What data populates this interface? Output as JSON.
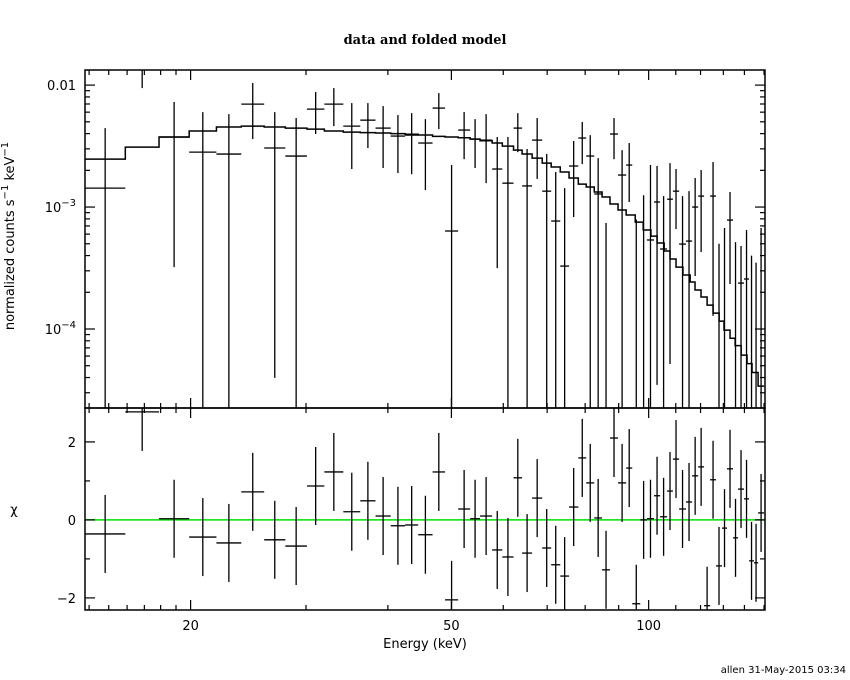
{
  "chart_data": [
    {
      "type": "scatter",
      "panel": "top",
      "title": "data and folded model",
      "ylabel": "normalized counts s^-1 keV^-1",
      "ylabel_parts": {
        "base": "normalized counts s",
        "exp1": "−1",
        "mid": " keV",
        "exp2": "−1"
      },
      "xscale": "log",
      "yscale": "log",
      "xlim": [
        13.8,
        150.5
      ],
      "ylim": [
        2.25e-05,
        0.0133
      ],
      "ytick_labels": [
        {
          "value": 0.01,
          "text": "0.01"
        },
        {
          "value": 0.001,
          "base": "10",
          "exp": "−3"
        },
        {
          "value": 0.0001,
          "base": "10",
          "exp": "−4"
        }
      ],
      "data_columns": [
        "e_lo_keV",
        "e_hi_keV",
        "counts",
        "err_lo",
        "err_hi"
      ],
      "data": [
        [
          13.8,
          15.9,
          0.00143,
          0,
          0.00444
        ],
        [
          15.9,
          17.9,
          0.0135,
          0.00945,
          0.018
        ],
        [
          17.9,
          19.9,
          0.00375,
          0.000322,
          0.00726
        ],
        [
          19.9,
          21.9,
          0.00282,
          0,
          0.00601
        ],
        [
          21.9,
          23.9,
          0.00272,
          0,
          0.00578
        ],
        [
          23.9,
          25.9,
          0.00698,
          0.00361,
          0.0104
        ],
        [
          25.9,
          27.9,
          0.00305,
          3.97e-05,
          0.00601
        ],
        [
          27.9,
          30.1,
          0.00262,
          0,
          0.00537
        ],
        [
          30.1,
          32.0,
          0.00635,
          0.00397,
          0.00877
        ],
        [
          32.0,
          34.2,
          0.00698,
          0.00461,
          0.00945
        ],
        [
          34.2,
          36.3,
          0.00461,
          0.00205,
          0.00712
        ],
        [
          36.3,
          38.3,
          0.00516,
          0.00305,
          0.00712
        ],
        [
          38.3,
          40.4,
          0.00444,
          0.00209,
          0.00673
        ],
        [
          40.4,
          42.5,
          0.00382,
          0.0019,
          0.00568
        ],
        [
          42.5,
          44.5,
          0.00389,
          0.00186,
          0.00589
        ],
        [
          44.5,
          46.8,
          0.00335,
          0.00138,
          0.00526
        ],
        [
          46.8,
          48.9,
          0.00648,
          0.00436,
          0.0086
        ],
        [
          48.9,
          51.2,
          0.000636,
          0,
          0.00221
        ],
        [
          51.2,
          53.4,
          0.00428,
          0.00247,
          0.00601
        ],
        [
          53.4,
          55.3,
          0.00361,
          0.00209,
          0.00526
        ],
        [
          55.3,
          57.7,
          0.00354,
          0.00157,
          0.00578
        ],
        [
          57.7,
          59.8,
          0.00205,
          0.000316,
          0.00375
        ],
        [
          59.8,
          62.2,
          0.00157,
          0,
          0.00375
        ],
        [
          62.2,
          64.1,
          0.00444,
          0.00282,
          0.00589
        ],
        [
          64.1,
          66.4,
          0.00149,
          0,
          0.00299
        ],
        [
          66.4,
          68.8,
          0.00354,
          0.0017,
          0.00537
        ],
        [
          68.8,
          71.0,
          0.00135,
          0,
          0.00272
        ],
        [
          71.0,
          73.3,
          0.000768,
          0,
          0.00194
        ],
        [
          73.3,
          75.6,
          0.000328,
          0,
          0.00143
        ],
        [
          75.6,
          78.1,
          0.00217,
          0.000828,
          0.00348
        ],
        [
          78.1,
          80.3,
          0.00368,
          0.00225,
          0.00498
        ],
        [
          80.3,
          82.6,
          0.00262,
          0,
          0.00389
        ],
        [
          82.6,
          84.9,
          0.00128,
          0,
          0.00252
        ],
        [
          84.9,
          87.3,
          null,
          0,
          0.00074
        ],
        [
          87.3,
          89.8,
          0.00397,
          0.00247,
          0.00537
        ],
        [
          89.8,
          92.4,
          0.00183,
          0,
          0.00293
        ],
        [
          92.4,
          94.4,
          0.00221,
          0.0011,
          0.00335
        ],
        [
          94.4,
          97.1,
          null,
          0,
          0.00079
        ],
        [
          97.1,
          99.4,
          null,
          0,
          0.00125
        ],
        [
          99.4,
          101.9,
          0.000537,
          0,
          0.00221
        ],
        [
          101.9,
          104.1,
          0.0011,
          3.48e-05,
          0.00217
        ],
        [
          104.1,
          106.7,
          0.000453,
          0,
          0.00123
        ],
        [
          106.7,
          108.9,
          0.00116,
          5.16e-05,
          0.00229
        ],
        [
          108.9,
          111.3,
          0.00135,
          0.00066,
          0.00205
        ],
        [
          111.3,
          114.0,
          0.000497,
          0,
          0.00123
        ],
        [
          114.0,
          116.5,
          0.000526,
          0,
          0.00135
        ],
        [
          116.5,
          119.0,
          0.001,
          0.000272,
          0.00173
        ],
        [
          119.0,
          121.5,
          0.00123,
          0.000428,
          0.00201
        ],
        [
          121.5,
          124.1,
          null,
          null,
          null
        ],
        [
          124.1,
          126.7,
          0.00123,
          0.000128,
          0.00234
        ],
        [
          126.7,
          129.4,
          null,
          0,
          0.0005
        ],
        [
          129.4,
          131.7,
          null,
          0,
          0.000673
        ],
        [
          131.7,
          134.5,
          0.000782,
          0.000234,
          0.00133
        ],
        [
          134.5,
          136.9,
          null,
          0,
          0.000516
        ],
        [
          136.9,
          139.8,
          0.000238,
          0,
          0.000479
        ],
        [
          139.8,
          142.3,
          0.000257,
          0,
          0.000648
        ],
        [
          142.3,
          144.8,
          null,
          0,
          0.0004
        ],
        [
          144.8,
          146.9,
          null,
          0,
          0.00035
        ],
        [
          146.9,
          150.0,
          null,
          0,
          0.000673
        ]
      ],
      "model_edges_keV": [
        13.8,
        15.9,
        17.9,
        19.9,
        21.9,
        23.9,
        25.9,
        27.9,
        30.1,
        32.0,
        34.2,
        36.3,
        38.3,
        40.4,
        42.5,
        44.5,
        46.8,
        48.9,
        51.2,
        53.4,
        55.3,
        57.7,
        59.8,
        62.2,
        64.1,
        66.4,
        68.8,
        71.0,
        73.3,
        75.6,
        78.1,
        80.3,
        82.6,
        84.9,
        87.3,
        89.8,
        92.4,
        95.4,
        98.1,
        100.8,
        103.0,
        105.6,
        107.8,
        110.1,
        112.8,
        115.7,
        117.7,
        120.2,
        122.8,
        125.4,
        128.1,
        130.3,
        133.1,
        135.5,
        138.4,
        141.3,
        143.8,
        146.9,
        150.0
      ],
      "model_values": [
        0.00247,
        0.0031,
        0.00375,
        0.0042,
        0.00453,
        0.00461,
        0.00453,
        0.00444,
        0.00436,
        0.0042,
        0.00412,
        0.00408,
        0.00405,
        0.004,
        0.00395,
        0.0039,
        0.0038,
        0.00375,
        0.0037,
        0.00361,
        0.0035,
        0.00335,
        0.00316,
        0.00293,
        0.00272,
        0.00252,
        0.00229,
        0.00213,
        0.00194,
        0.00173,
        0.00154,
        0.00146,
        0.00133,
        0.00121,
        0.00106,
        0.000945,
        0.00086,
        0.000753,
        0.000648,
        0.000578,
        0.000507,
        0.000436,
        0.000375,
        0.000322,
        0.000277,
        0.000243,
        0.000209,
        0.000183,
        0.000157,
        0.000135,
        0.000116,
        9.8e-05,
        8.4e-05,
        7.3e-05,
        6.1e-05,
        5.2e-05,
        4.4e-05,
        3.4e-05
      ],
      "colors": {
        "data": "#000000",
        "model": "#000000"
      }
    },
    {
      "type": "scatter",
      "panel": "bottom",
      "ylabel": "χ",
      "xlabel": "Energy (keV)",
      "xscale": "log",
      "xlim": [
        13.8,
        150.5
      ],
      "ylim": [
        -2.31,
        2.87
      ],
      "xtick_labels": [
        {
          "value": 20,
          "text": "20"
        },
        {
          "value": 50,
          "text": "50"
        },
        {
          "value": 100,
          "text": "100"
        }
      ],
      "ytick_labels": [
        {
          "value": 2,
          "text": "2"
        },
        {
          "value": 0,
          "text": "0"
        },
        {
          "value": -2,
          "text": "−2"
        }
      ],
      "chi": [
        -0.36,
        2.77,
        0.03,
        -0.44,
        -0.59,
        0.72,
        -0.51,
        -0.67,
        0.87,
        1.23,
        0.21,
        0.49,
        0.1,
        -0.15,
        -0.13,
        -0.38,
        1.23,
        -2.05,
        0.28,
        0.03,
        0.1,
        -0.77,
        -0.95,
        1.08,
        -0.85,
        0.56,
        -0.72,
        -1.15,
        -1.44,
        0.33,
        1.59,
        0.95,
        0.05,
        -1.28,
        2.1,
        0.95,
        1.33,
        -2.15,
        0.0,
        0.03,
        0.62,
        0.08,
        0.74,
        1.56,
        0.28,
        0.46,
        1.13,
        1.36,
        -2.2,
        1.03,
        -1.18,
        -0.21,
        1.31,
        -0.46,
        0.79,
        0.54,
        -1.05,
        -1.1,
        0.18
      ],
      "chi_error": 1,
      "reference_line": 0,
      "colors": {
        "data": "#000000",
        "zero_line": "#00e000"
      }
    }
  ],
  "footer": "allen 31-May-2015 03:34"
}
